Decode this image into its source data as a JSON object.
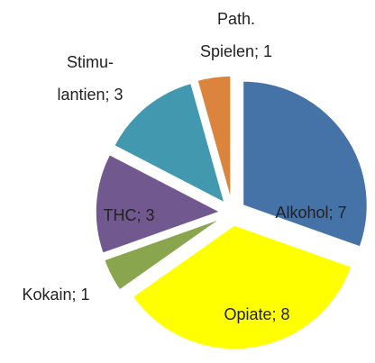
{
  "chart_data": {
    "type": "pie",
    "values": [
      7,
      8,
      1,
      3,
      3,
      1
    ],
    "value_labels": [
      [
        "Alkohol; 7"
      ],
      [
        "Opiate; 8"
      ],
      [
        "Kokain; 1"
      ],
      [
        "THC; 3"
      ],
      [
        "Stimu-",
        "lantien; 3"
      ],
      [
        "Path.",
        "Spielen; 1"
      ]
    ],
    "colors": [
      "#4572a7",
      "#ffff00",
      "#89a54e",
      "#71588f",
      "#4198af",
      "#db843d"
    ],
    "explode": true
  }
}
